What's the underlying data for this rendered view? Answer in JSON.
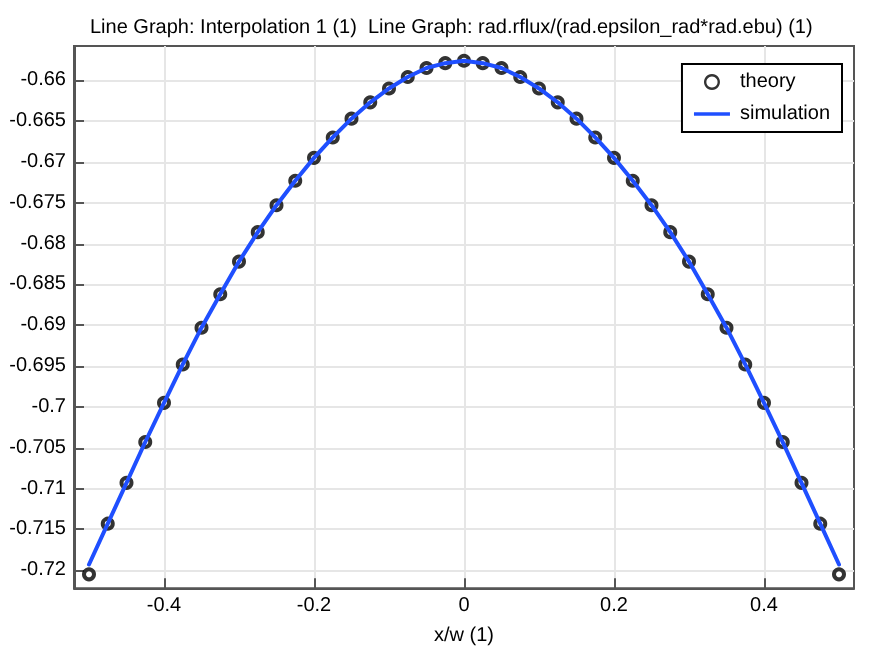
{
  "chart_data": {
    "type": "line",
    "title": "Line Graph: Interpolation 1 (1)  Line Graph: rad.rflux/(rad.epsilon_rad*rad.ebu) (1)",
    "xlabel": "x/w (1)",
    "xlim": [
      -0.52,
      0.52
    ],
    "xticks": [
      -0.4,
      -0.2,
      0,
      0.2,
      0.4
    ],
    "ylim": [
      -0.7222,
      -0.6558
    ],
    "yticks": [
      -0.66,
      -0.665,
      -0.67,
      -0.675,
      -0.68,
      -0.685,
      -0.69,
      -0.695,
      -0.7,
      -0.705,
      -0.71,
      -0.715,
      -0.72
    ],
    "grid": true,
    "legend": "top right",
    "x": [
      -0.5,
      -0.475,
      -0.45,
      -0.425,
      -0.4,
      -0.375,
      -0.35,
      -0.325,
      -0.3,
      -0.275,
      -0.25,
      -0.225,
      -0.2,
      -0.175,
      -0.15,
      -0.125,
      -0.1,
      -0.075,
      -0.05,
      -0.025,
      0,
      0.025,
      0.05,
      0.075,
      0.1,
      0.125,
      0.15,
      0.175,
      0.2,
      0.225,
      0.25,
      0.275,
      0.3,
      0.325,
      0.35,
      0.375,
      0.4,
      0.425,
      0.45,
      0.475,
      0.5
    ],
    "series": [
      {
        "name": "theory",
        "type": "scatter",
        "marker": "circle",
        "color": "#000000",
        "values": [
          -0.7205,
          -0.7143,
          -0.7093,
          -0.7043,
          -0.6995,
          -0.6948,
          -0.6903,
          -0.6862,
          -0.6822,
          -0.6786,
          -0.6753,
          -0.6723,
          -0.6695,
          -0.667,
          -0.6647,
          -0.6627,
          -0.661,
          -0.6596,
          -0.6585,
          -0.6579,
          -0.6576,
          -0.6579,
          -0.6585,
          -0.6596,
          -0.661,
          -0.6627,
          -0.6647,
          -0.667,
          -0.6695,
          -0.6723,
          -0.6753,
          -0.6786,
          -0.6822,
          -0.6862,
          -0.6903,
          -0.6948,
          -0.6995,
          -0.7043,
          -0.7093,
          -0.7143,
          -0.7205
        ]
      },
      {
        "name": "simulation",
        "line_style": "solid",
        "color": "#1f4fff",
        "values": [
          -0.7193,
          -0.7143,
          -0.7093,
          -0.7043,
          -0.6995,
          -0.6948,
          -0.6903,
          -0.6862,
          -0.6822,
          -0.6786,
          -0.6753,
          -0.6723,
          -0.6695,
          -0.667,
          -0.6647,
          -0.6627,
          -0.661,
          -0.6596,
          -0.6585,
          -0.6579,
          -0.6576,
          -0.6579,
          -0.6585,
          -0.6596,
          -0.661,
          -0.6627,
          -0.6647,
          -0.667,
          -0.6695,
          -0.6723,
          -0.6753,
          -0.6786,
          -0.6822,
          -0.6862,
          -0.6903,
          -0.6948,
          -0.6995,
          -0.7043,
          -0.7093,
          -0.7143,
          -0.7193
        ]
      }
    ]
  }
}
